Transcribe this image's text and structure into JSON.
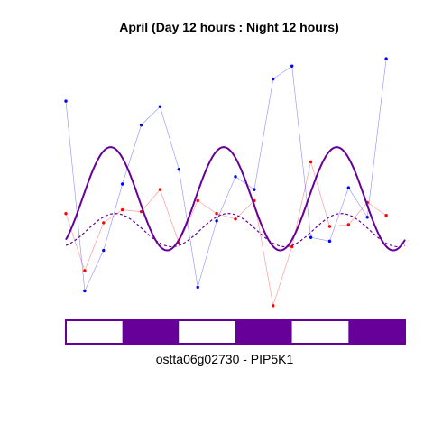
{
  "chart_data": {
    "type": "line",
    "title": "April (Day 12 hours : Night 12 hours)",
    "caption": "ostta06g02730 - PIP5K1",
    "xlim": [
      0,
      72
    ],
    "ylim": [
      -3.3,
      3.7
    ],
    "grid": false,
    "legend": "none",
    "light_bar": {
      "segments": [
        {
          "phase": "day",
          "start": 0,
          "end": 12
        },
        {
          "phase": "night",
          "start": 12,
          "end": 24
        },
        {
          "phase": "day",
          "start": 24,
          "end": 36
        },
        {
          "phase": "night",
          "start": 36,
          "end": 48
        },
        {
          "phase": "day",
          "start": 48,
          "end": 60
        },
        {
          "phase": "night",
          "start": 60,
          "end": 72
        }
      ]
    },
    "series": [
      {
        "color": "#0000ff",
        "style": "points-thin-line",
        "x": [
          0,
          4,
          8,
          12,
          16,
          20,
          24,
          28,
          32,
          36,
          40,
          44,
          48,
          52,
          56,
          60,
          64,
          68
        ],
        "y": [
          2.45,
          -2.7,
          -1.6,
          0.2,
          1.8,
          2.3,
          0.6,
          -2.6,
          -0.8,
          0.4,
          0.05,
          3.05,
          3.4,
          -1.25,
          -1.35,
          0.1,
          -0.7,
          3.6
        ]
      },
      {
        "color": "#ff0000",
        "style": "points-thin-line",
        "x": [
          0,
          4,
          8,
          12,
          16,
          20,
          24,
          28,
          32,
          36,
          40,
          44,
          48,
          52,
          56,
          60,
          64,
          68
        ],
        "y": [
          -0.6,
          -2.15,
          -0.85,
          -0.5,
          -0.55,
          0.05,
          -1.4,
          -0.25,
          -0.6,
          -0.75,
          -0.25,
          -3.1,
          -1.5,
          0.8,
          -0.95,
          -0.9,
          -0.3,
          -0.65
        ]
      },
      {
        "color": "#660099",
        "style": "solid-thick",
        "fit": "sinusoid",
        "mean": -0.2,
        "amplitude": 1.4,
        "period": 24,
        "peak": 9.5
      },
      {
        "color": "#660099",
        "style": "dashed",
        "fit": "sinusoid",
        "mean": -1.05,
        "amplitude": 0.45,
        "period": 24,
        "peak": 10.5
      }
    ]
  },
  "colors": {
    "night": "#660099",
    "day": "#ffffff",
    "bar_border": "#660099"
  }
}
